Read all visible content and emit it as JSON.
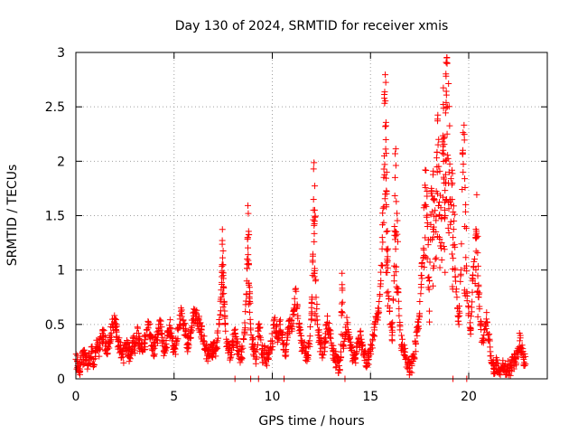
{
  "chart_data": {
    "type": "scatter",
    "title": "Day 130 of 2024, SRMTID for receiver xmis",
    "xlabel": "GPS time / hours",
    "ylabel": "SRMTID / TECUs",
    "xlim": [
      0,
      24
    ],
    "ylim": [
      0,
      3
    ],
    "x_ticks": [
      0,
      5,
      10,
      15,
      20
    ],
    "x_tick_labels": [
      "0",
      "5",
      "10",
      "15",
      "20"
    ],
    "y_ticks": [
      0,
      0.5,
      1,
      1.5,
      2,
      2.5,
      3
    ],
    "y_tick_labels": [
      "0",
      "0.5",
      "1",
      "1.5",
      "2",
      "2.5",
      "3"
    ],
    "grid": true,
    "marker": "+",
    "series": [
      {
        "name": "SRMTID",
        "color": "#ff0000",
        "x": [
          0.0,
          0.1,
          0.2,
          0.3,
          0.4,
          0.5,
          0.6,
          0.7,
          0.8,
          0.9,
          1.0,
          1.1,
          1.2,
          1.3,
          1.4,
          1.5,
          1.6,
          1.7,
          1.8,
          1.9,
          2.0,
          2.05,
          2.1,
          2.2,
          2.3,
          2.4,
          2.5,
          2.6,
          2.7,
          2.8,
          2.9,
          3.0,
          3.1,
          3.2,
          3.3,
          3.4,
          3.5,
          3.6,
          3.7,
          3.8,
          3.9,
          4.0,
          4.1,
          4.2,
          4.3,
          4.4,
          4.5,
          4.6,
          4.7,
          4.8,
          4.9,
          5.0,
          5.1,
          5.2,
          5.3,
          5.4,
          5.5,
          5.6,
          5.7,
          5.8,
          5.9,
          6.0,
          6.1,
          6.2,
          6.3,
          6.4,
          6.5,
          6.6,
          6.7,
          6.8,
          6.9,
          7.0,
          7.1,
          7.2,
          7.3,
          7.4,
          7.45,
          7.5,
          7.55,
          7.6,
          7.7,
          7.8,
          7.9,
          8.0,
          8.1,
          8.2,
          8.3,
          8.4,
          8.5,
          8.6,
          8.7,
          8.75,
          8.8,
          8.85,
          8.9,
          9.0,
          9.1,
          9.2,
          9.3,
          9.4,
          9.5,
          9.6,
          9.7,
          9.8,
          9.9,
          10.0,
          10.1,
          10.2,
          10.3,
          10.4,
          10.5,
          10.6,
          10.7,
          10.8,
          10.9,
          11.0,
          11.1,
          11.2,
          11.3,
          11.4,
          11.5,
          11.6,
          11.7,
          11.8,
          11.9,
          12.0,
          12.05,
          12.1,
          12.15,
          12.2,
          12.3,
          12.4,
          12.5,
          12.6,
          12.7,
          12.8,
          12.9,
          13.0,
          13.1,
          13.2,
          13.3,
          13.4,
          13.5,
          13.55,
          13.6,
          13.7,
          13.8,
          13.9,
          14.0,
          14.1,
          14.2,
          14.3,
          14.4,
          14.5,
          14.6,
          14.7,
          14.8,
          14.9,
          15.0,
          15.1,
          15.2,
          15.3,
          15.4,
          15.5,
          15.6,
          15.7,
          15.75,
          15.8,
          15.85,
          15.9,
          16.0,
          16.1,
          16.2,
          16.25,
          16.3,
          16.4,
          16.5,
          16.6,
          16.7,
          16.8,
          16.9,
          17.0,
          17.1,
          17.2,
          17.3,
          17.4,
          17.5,
          17.6,
          17.7,
          17.8,
          17.9,
          18.0,
          18.1,
          18.2,
          18.3,
          18.4,
          18.5,
          18.6,
          18.7,
          18.75,
          18.8,
          18.85,
          18.9,
          19.0,
          19.1,
          19.2,
          19.3,
          19.4,
          19.5,
          19.6,
          19.7,
          19.8,
          19.9,
          20.0,
          20.1,
          20.2,
          20.3,
          20.4,
          20.5,
          20.6,
          20.7,
          20.8,
          20.9,
          21.0,
          21.1,
          21.2,
          21.3,
          21.4,
          21.5,
          21.6,
          21.7,
          21.8,
          21.9,
          22.0,
          22.1,
          22.2,
          22.3,
          22.4,
          22.5,
          22.6,
          22.7,
          22.8
        ],
        "y": [
          0.18,
          0.12,
          0.09,
          0.15,
          0.21,
          0.17,
          0.12,
          0.2,
          0.25,
          0.18,
          0.24,
          0.32,
          0.28,
          0.36,
          0.4,
          0.3,
          0.27,
          0.34,
          0.42,
          0.5,
          0.55,
          0.48,
          0.38,
          0.3,
          0.25,
          0.2,
          0.28,
          0.33,
          0.22,
          0.27,
          0.35,
          0.3,
          0.42,
          0.37,
          0.29,
          0.25,
          0.33,
          0.45,
          0.52,
          0.4,
          0.31,
          0.28,
          0.36,
          0.44,
          0.5,
          0.38,
          0.26,
          0.32,
          0.4,
          0.47,
          0.35,
          0.25,
          0.31,
          0.45,
          0.55,
          0.6,
          0.5,
          0.4,
          0.32,
          0.38,
          0.47,
          0.58,
          0.6,
          0.55,
          0.5,
          0.45,
          0.35,
          0.28,
          0.23,
          0.27,
          0.24,
          0.29,
          0.26,
          0.35,
          0.5,
          0.75,
          1.05,
          0.95,
          0.7,
          0.5,
          0.3,
          0.26,
          0.22,
          0.35,
          0.42,
          0.3,
          0.25,
          0.2,
          0.28,
          0.45,
          0.9,
          1.3,
          1.05,
          0.8,
          0.45,
          0.32,
          0.25,
          0.2,
          0.5,
          0.38,
          0.22,
          0.26,
          0.19,
          0.23,
          0.28,
          0.35,
          0.5,
          0.44,
          0.38,
          0.5,
          0.4,
          0.32,
          0.27,
          0.42,
          0.55,
          0.48,
          0.62,
          0.83,
          0.58,
          0.42,
          0.33,
          0.28,
          0.25,
          0.22,
          0.35,
          0.6,
          0.95,
          1.65,
          1.45,
          0.9,
          0.5,
          0.35,
          0.28,
          0.22,
          0.38,
          0.52,
          0.45,
          0.33,
          0.25,
          0.19,
          0.15,
          0.12,
          0.2,
          0.97,
          0.3,
          0.4,
          0.5,
          0.36,
          0.28,
          0.22,
          0.18,
          0.25,
          0.32,
          0.4,
          0.3,
          0.2,
          0.15,
          0.18,
          0.25,
          0.35,
          0.45,
          0.55,
          0.6,
          0.85,
          1.3,
          2.05,
          2.32,
          1.6,
          1.1,
          0.8,
          0.5,
          0.4,
          0.9,
          1.85,
          1.35,
          0.8,
          0.45,
          0.3,
          0.25,
          0.2,
          0.15,
          0.1,
          0.12,
          0.2,
          0.32,
          0.45,
          0.6,
          0.95,
          1.2,
          1.6,
          1.4,
          0.9,
          1.75,
          1.3,
          1.1,
          1.9,
          1.5,
          1.2,
          2.1,
          1.8,
          1.5,
          2.54,
          2.25,
          1.9,
          1.6,
          1.3,
          1.0,
          0.75,
          0.5,
          1.0,
          2.1,
          1.4,
          0.8,
          0.6,
          0.45,
          0.9,
          1.1,
          1.3,
          0.85,
          0.5,
          0.35,
          0.45,
          0.55,
          0.4,
          0.25,
          0.15,
          0.1,
          0.12,
          0.09,
          0.07,
          0.1,
          0.08,
          0.06,
          0.1,
          0.08,
          0.12,
          0.15,
          0.2,
          0.28,
          0.35,
          0.25,
          0.18
        ]
      }
    ],
    "zero_markers_x": [
      8.1,
      8.9,
      9.3,
      10.6,
      13.7,
      19.2,
      19.9
    ]
  }
}
